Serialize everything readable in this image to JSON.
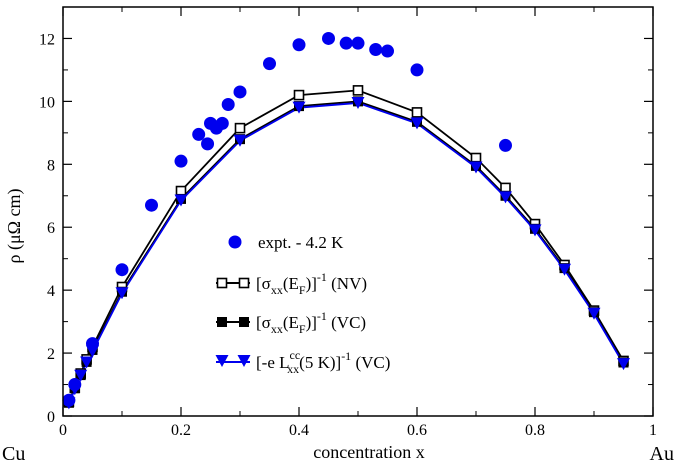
{
  "chart_data": {
    "type": "scatter",
    "xlabel": "concentration x",
    "ylabel": "ρ  (μΩ cm)",
    "xlim": [
      0,
      1
    ],
    "ylim": [
      0,
      13
    ],
    "xticks": [
      0,
      0.2,
      0.4,
      0.6,
      0.8,
      1
    ],
    "yticks": [
      0,
      2,
      4,
      6,
      8,
      10,
      12
    ],
    "xtick_labels": [
      "0",
      "0.2",
      "0.4",
      "0.6",
      "0.8",
      "1"
    ],
    "ytick_labels": [
      "0",
      "2",
      "4",
      "6",
      "8",
      "10",
      "12"
    ],
    "end_labels": {
      "left": "Cu",
      "right": "Au"
    },
    "grid": false,
    "legend_position": "center-left",
    "series": [
      {
        "name": "expt. - 4.2 K",
        "marker": "circle",
        "line": false,
        "color": "#0000ee",
        "x": [
          0.01,
          0.02,
          0.05,
          0.1,
          0.15,
          0.2,
          0.23,
          0.245,
          0.25,
          0.26,
          0.27,
          0.28,
          0.3,
          0.35,
          0.4,
          0.45,
          0.48,
          0.5,
          0.53,
          0.55,
          0.6,
          0.75
        ],
        "y": [
          0.5,
          1.0,
          2.3,
          4.65,
          6.7,
          8.1,
          8.95,
          8.65,
          9.3,
          9.15,
          9.3,
          9.9,
          10.3,
          11.2,
          11.8,
          12.0,
          11.85,
          11.85,
          11.65,
          11.6,
          11.0,
          8.6
        ]
      },
      {
        "name": "NV",
        "legend_label": {
          "pre": "[σ",
          "sub1": "xx",
          "mid": "(E",
          "sub2": "F",
          "post": ")]",
          "sup": "-1",
          "tail": " (NV)"
        },
        "marker": "square-open",
        "line": true,
        "color": "#000000",
        "x": [
          0.01,
          0.02,
          0.03,
          0.04,
          0.05,
          0.1,
          0.2,
          0.3,
          0.4,
          0.5,
          0.6,
          0.7,
          0.75,
          0.8,
          0.85,
          0.9,
          0.95
        ],
        "y": [
          0.45,
          0.9,
          1.35,
          1.8,
          2.2,
          4.1,
          7.15,
          9.15,
          10.2,
          10.35,
          9.65,
          8.2,
          7.25,
          6.1,
          4.8,
          3.35,
          1.75
        ]
      },
      {
        "name": "VC",
        "legend_label": {
          "pre": "[σ",
          "sub1": "xx",
          "mid": "(E",
          "sub2": "F",
          "post": ")]",
          "sup": "-1",
          "tail": " (VC)"
        },
        "marker": "square-filled",
        "line": true,
        "color": "#000000",
        "x": [
          0.01,
          0.02,
          0.03,
          0.04,
          0.05,
          0.1,
          0.2,
          0.3,
          0.4,
          0.5,
          0.6,
          0.7,
          0.75,
          0.8,
          0.85,
          0.9,
          0.95
        ],
        "y": [
          0.42,
          0.88,
          1.3,
          1.72,
          2.1,
          3.95,
          6.9,
          8.8,
          9.85,
          10.0,
          9.35,
          7.95,
          7.0,
          5.95,
          4.7,
          3.3,
          1.7
        ]
      },
      {
        "name": "VC (5 K)",
        "legend_label": {
          "pre": "[-e L",
          "sup1": "cc",
          "sub1": "xx",
          "mid": "(5 K)]",
          "sup": "-1",
          "tail": " (VC)"
        },
        "marker": "triangle-down",
        "line": true,
        "color": "#0000ee",
        "x": [
          0.01,
          0.02,
          0.03,
          0.04,
          0.05,
          0.1,
          0.2,
          0.3,
          0.4,
          0.5,
          0.6,
          0.7,
          0.75,
          0.8,
          0.85,
          0.9,
          0.95
        ],
        "y": [
          0.4,
          0.85,
          1.28,
          1.7,
          2.05,
          3.9,
          6.85,
          8.75,
          9.8,
          9.95,
          9.3,
          7.9,
          6.95,
          5.9,
          4.65,
          3.25,
          1.65
        ]
      }
    ]
  }
}
